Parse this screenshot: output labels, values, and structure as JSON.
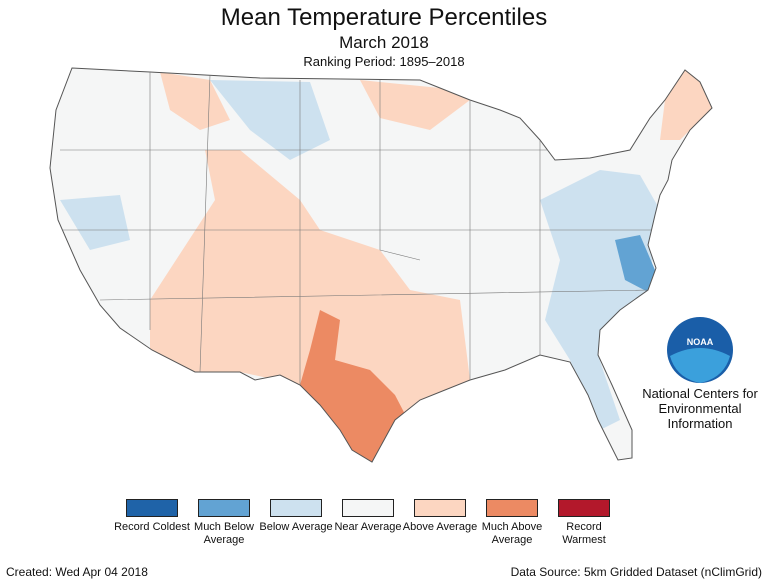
{
  "header": {
    "title": "Mean Temperature Percentiles",
    "subtitle": "March 2018",
    "period": "Ranking Period: 1895–2018"
  },
  "legend": {
    "items": [
      {
        "label": "Record Coldest",
        "color": "#1f63a8"
      },
      {
        "label": "Much Below Average",
        "color": "#62a3d3"
      },
      {
        "label": "Below Average",
        "color": "#cde1ef"
      },
      {
        "label": "Near Average",
        "color": "#f5f6f6"
      },
      {
        "label": "Above Average",
        "color": "#fcd6c1"
      },
      {
        "label": "Much Above Average",
        "color": "#ec8a63"
      },
      {
        "label": "Record Warmest",
        "color": "#b3182b"
      }
    ]
  },
  "logo": {
    "text": "NOAA",
    "org": "National Centers for Environmental Information"
  },
  "footer": {
    "created": "Created: Wed Apr 04 2018",
    "source": "Data Source: 5km Gridded Dataset (nClimGrid)"
  }
}
